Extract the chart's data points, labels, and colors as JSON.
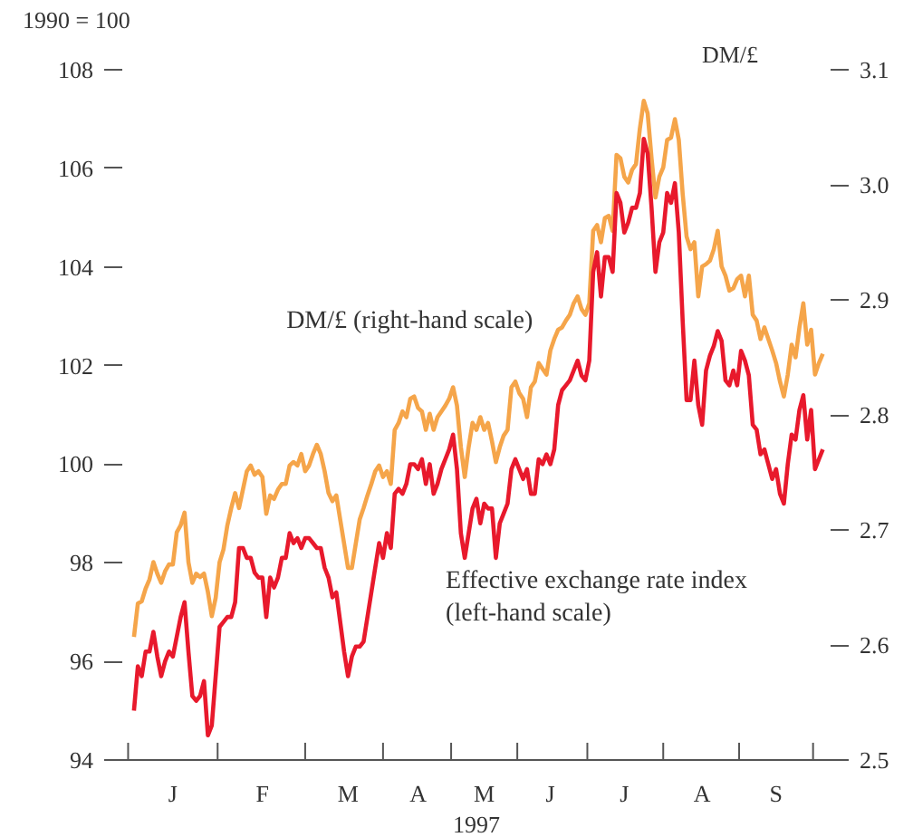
{
  "chart_data": {
    "type": "line",
    "xlabel": "1997",
    "ylabel": "1990 = 100",
    "y2label": "DM/£",
    "categories": [
      null,
      null,
      null,
      null,
      null,
      null,
      null,
      null,
      null,
      null,
      "J",
      null,
      null,
      null,
      null,
      null,
      null,
      null,
      null,
      null,
      null,
      null,
      null,
      null,
      null,
      null,
      null,
      null,
      null,
      null,
      null,
      null,
      null,
      "F",
      null,
      null,
      null,
      null,
      null,
      null,
      null,
      null,
      null,
      null,
      null,
      null,
      null,
      null,
      null,
      null,
      null,
      null,
      null,
      null,
      null,
      "M",
      null,
      null,
      null,
      null,
      null,
      null,
      null,
      null,
      null,
      null,
      null,
      null,
      null,
      null,
      null,
      null,
      null,
      "A",
      null,
      null,
      null,
      null,
      null,
      null,
      null,
      null,
      null,
      null,
      null,
      null,
      null,
      null,
      null,
      null,
      "M",
      null,
      null,
      null,
      null,
      null,
      null,
      null,
      null,
      null,
      null,
      null,
      null,
      null,
      null,
      null,
      null,
      "J",
      null,
      null,
      null,
      null,
      null,
      null,
      null,
      null,
      null,
      null,
      null,
      null,
      null,
      null,
      null,
      null,
      null,
      null,
      "J",
      null,
      null,
      null,
      null,
      null,
      null,
      null,
      null,
      null,
      null,
      null,
      null,
      null,
      null,
      null,
      null,
      null,
      null,
      null,
      "A",
      null,
      null,
      null,
      null,
      null,
      null,
      null,
      null,
      null,
      null,
      null,
      null,
      null,
      null,
      null,
      null,
      null,
      null,
      "S",
      null,
      null,
      null,
      null,
      null,
      null,
      null,
      null,
      null,
      null,
      null,
      null
    ],
    "ylim": [
      94,
      108
    ],
    "y2lim": [
      2.5,
      3.1
    ],
    "yticks": [
      94,
      96,
      98,
      100,
      102,
      104,
      106,
      108
    ],
    "y2ticks": [
      2.5,
      2.6,
      2.7,
      2.8,
      2.9,
      {
        "value": 3.0,
        "label": "3.0"
      },
      3.1
    ],
    "grid": false,
    "series": [
      {
        "name": "DM/£ (right-hand scale)",
        "color": "#f5a54a",
        "axis": "y2",
        "values": [
          2.607,
          2.636,
          2.638,
          2.649,
          2.657,
          2.672,
          2.662,
          2.654,
          2.664,
          2.67,
          2.67,
          2.698,
          2.704,
          2.715,
          2.672,
          2.654,
          2.662,
          2.659,
          2.662,
          2.646,
          2.625,
          2.641,
          2.672,
          2.683,
          2.704,
          2.719,
          2.732,
          2.719,
          2.735,
          2.751,
          2.756,
          2.748,
          2.751,
          2.746,
          2.714,
          2.73,
          2.727,
          2.735,
          2.74,
          2.74,
          2.756,
          2.759,
          2.756,
          2.766,
          2.751,
          2.756,
          2.766,
          2.774,
          2.766,
          2.751,
          2.732,
          2.725,
          2.73,
          2.709,
          2.688,
          2.667,
          2.667,
          2.688,
          2.709,
          2.719,
          2.73,
          2.74,
          2.751,
          2.756,
          2.746,
          2.751,
          2.74,
          2.787,
          2.793,
          2.803,
          2.798,
          2.814,
          2.816,
          2.806,
          2.803,
          2.787,
          2.801,
          2.787,
          2.798,
          2.803,
          2.808,
          2.814,
          2.824,
          2.808,
          2.772,
          2.746,
          2.772,
          2.793,
          2.787,
          2.798,
          2.787,
          2.793,
          2.777,
          2.759,
          2.772,
          2.782,
          2.787,
          2.824,
          2.829,
          2.819,
          2.814,
          2.798,
          2.824,
          2.829,
          2.845,
          2.84,
          2.835,
          2.856,
          2.866,
          2.874,
          2.876,
          2.882,
          2.887,
          2.897,
          2.903,
          2.892,
          2.887,
          2.897,
          2.96,
          2.965,
          2.95,
          2.971,
          2.973,
          2.96,
          3.026,
          3.023,
          3.007,
          3.002,
          3.013,
          3.018,
          3.049,
          3.073,
          3.062,
          3.023,
          2.989,
          3.007,
          3.015,
          3.039,
          3.041,
          3.057,
          3.039,
          2.992,
          2.955,
          2.944,
          2.95,
          2.903,
          2.929,
          2.931,
          2.934,
          2.944,
          2.96,
          2.929,
          2.921,
          2.908,
          2.91,
          2.918,
          2.921,
          2.903,
          2.921,
          2.887,
          2.882,
          2.866,
          2.876,
          2.866,
          2.856,
          2.845,
          2.829,
          2.816,
          2.835,
          2.861,
          2.85,
          2.876,
          2.897,
          2.861,
          2.874,
          2.835,
          2.845,
          2.853
        ]
      },
      {
        "name": "Effective exchange rate index (left-hand scale)",
        "color": "#e8192c",
        "values": [
          95.0,
          95.9,
          95.7,
          96.2,
          96.2,
          96.6,
          96.1,
          95.7,
          96.0,
          96.2,
          96.1,
          96.5,
          96.9,
          97.2,
          96.2,
          95.3,
          95.2,
          95.3,
          95.6,
          94.5,
          94.7,
          95.7,
          96.7,
          96.8,
          96.9,
          96.9,
          97.2,
          98.3,
          98.3,
          98.1,
          98.1,
          97.8,
          97.7,
          97.7,
          96.9,
          97.7,
          97.5,
          97.7,
          98.1,
          98.1,
          98.6,
          98.4,
          98.5,
          98.3,
          98.5,
          98.5,
          98.4,
          98.3,
          98.3,
          97.9,
          97.7,
          97.3,
          97.4,
          96.8,
          96.2,
          95.7,
          96.1,
          96.3,
          96.3,
          96.4,
          96.9,
          97.4,
          97.9,
          98.4,
          98.1,
          98.6,
          98.3,
          99.4,
          99.5,
          99.4,
          99.6,
          100.0,
          100.0,
          99.9,
          100.1,
          99.6,
          100.0,
          99.4,
          99.6,
          99.9,
          100.1,
          100.3,
          100.6,
          99.9,
          98.6,
          98.1,
          98.6,
          99.1,
          99.3,
          98.8,
          99.2,
          99.1,
          99.1,
          98.1,
          98.8,
          99.0,
          99.2,
          99.9,
          100.1,
          99.9,
          99.7,
          99.9,
          99.4,
          99.4,
          100.1,
          100.0,
          100.2,
          100.0,
          100.3,
          101.2,
          101.5,
          101.6,
          101.7,
          101.9,
          102.1,
          101.8,
          101.7,
          102.1,
          103.9,
          104.3,
          103.4,
          104.2,
          104.2,
          103.9,
          105.5,
          105.3,
          104.7,
          104.9,
          105.2,
          105.2,
          105.5,
          106.6,
          106.3,
          105.2,
          103.9,
          104.5,
          104.7,
          105.5,
          105.3,
          105.7,
          104.7,
          102.9,
          101.3,
          101.3,
          102.1,
          101.2,
          100.8,
          101.9,
          102.2,
          102.4,
          102.7,
          102.5,
          101.7,
          101.6,
          101.9,
          101.6,
          102.3,
          102.1,
          101.8,
          100.8,
          100.7,
          100.2,
          100.3,
          100.0,
          99.7,
          99.9,
          99.4,
          99.2,
          100.0,
          100.6,
          100.5,
          101.1,
          101.4,
          100.5,
          101.1,
          99.9,
          100.1,
          100.3
        ]
      }
    ]
  }
}
